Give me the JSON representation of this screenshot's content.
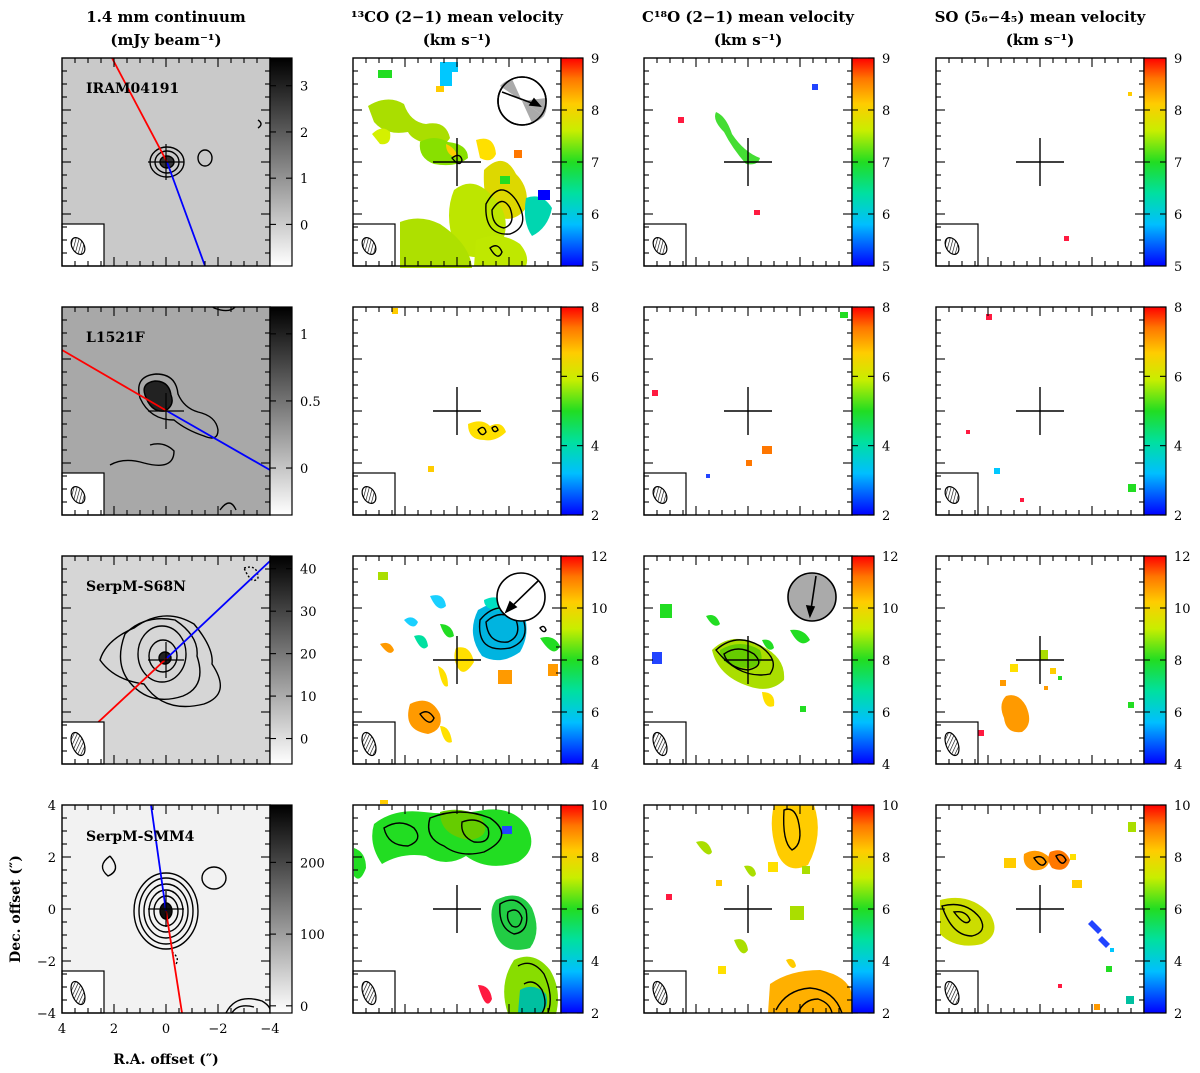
{
  "column_titles": [
    {
      "line1": "1.4 mm continuum",
      "line2": "(mJy beam⁻¹)"
    },
    {
      "line1": "¹³CO (2−1) mean velocity",
      "line2": "(km s⁻¹)"
    },
    {
      "line1": "C¹⁸O (2−1) mean velocity",
      "line2": "(km s⁻¹)"
    },
    {
      "line1": "SO (5₆−4₅) mean velocity",
      "line2": "(km s⁻¹)"
    }
  ],
  "x_axis_label": "R.A. offset (″)",
  "y_axis_label": "Dec. offset (″)",
  "chart_data": [
    {
      "type": "heatmap",
      "source": "IRAM04191",
      "panel": "1.4 mm continuum",
      "colorbar": {
        "colormap": "grayscale",
        "ticks": [
          "0",
          "1",
          "2",
          "3"
        ],
        "range": [
          -0.9,
          3.6
        ]
      },
      "outflow_pa_axes": true
    },
    {
      "type": "heatmap",
      "source": "IRAM04191",
      "panel": "13CO (2-1) mean velocity",
      "colorbar": {
        "colormap": "rainbow",
        "ticks": [
          "5",
          "6",
          "7",
          "8",
          "9"
        ],
        "range": [
          5,
          9
        ]
      },
      "rotation_indicator": "arrow"
    },
    {
      "type": "heatmap",
      "source": "IRAM04191",
      "panel": "C18O (2-1) mean velocity",
      "colorbar": {
        "colormap": "rainbow",
        "ticks": [
          "5",
          "6",
          "7",
          "8",
          "9"
        ],
        "range": [
          5,
          9
        ]
      }
    },
    {
      "type": "heatmap",
      "source": "IRAM04191",
      "panel": "SO (56-45) mean velocity",
      "colorbar": {
        "colormap": "rainbow",
        "ticks": [
          "5",
          "6",
          "7",
          "8",
          "9"
        ],
        "range": [
          5,
          9
        ]
      }
    },
    {
      "type": "heatmap",
      "source": "L1521F",
      "panel": "1.4 mm continuum",
      "colorbar": {
        "colormap": "grayscale",
        "ticks": [
          "0",
          "0.5",
          "1"
        ],
        "range": [
          -0.35,
          1.2
        ]
      },
      "outflow_pa_axes": true
    },
    {
      "type": "heatmap",
      "source": "L1521F",
      "panel": "13CO (2-1) mean velocity",
      "colorbar": {
        "colormap": "rainbow",
        "ticks": [
          "2",
          "4",
          "6",
          "8"
        ],
        "range": [
          2,
          8
        ]
      }
    },
    {
      "type": "heatmap",
      "source": "L1521F",
      "panel": "C18O (2-1) mean velocity",
      "colorbar": {
        "colormap": "rainbow",
        "ticks": [
          "2",
          "4",
          "6",
          "8"
        ],
        "range": [
          2,
          8
        ]
      }
    },
    {
      "type": "heatmap",
      "source": "L1521F",
      "panel": "SO (56-45) mean velocity",
      "colorbar": {
        "colormap": "rainbow",
        "ticks": [
          "2",
          "4",
          "6",
          "8"
        ],
        "range": [
          2,
          8
        ]
      }
    },
    {
      "type": "heatmap",
      "source": "SerpM-S68N",
      "panel": "1.4 mm continuum",
      "colorbar": {
        "colormap": "grayscale",
        "ticks": [
          "0",
          "10",
          "20",
          "30",
          "40"
        ],
        "range": [
          -6,
          43
        ]
      },
      "outflow_pa_axes": true
    },
    {
      "type": "heatmap",
      "source": "SerpM-S68N",
      "panel": "13CO (2-1) mean velocity",
      "colorbar": {
        "colormap": "rainbow",
        "ticks": [
          "4",
          "6",
          "8",
          "10",
          "12"
        ],
        "range": [
          4,
          12
        ]
      },
      "rotation_indicator": "arrow"
    },
    {
      "type": "heatmap",
      "source": "SerpM-S68N",
      "panel": "C18O (2-1) mean velocity",
      "colorbar": {
        "colormap": "rainbow",
        "ticks": [
          "4",
          "6",
          "8",
          "10",
          "12"
        ],
        "range": [
          4,
          12
        ]
      },
      "rotation_indicator": "arrow"
    },
    {
      "type": "heatmap",
      "source": "SerpM-S68N",
      "panel": "SO (56-45) mean velocity",
      "colorbar": {
        "colormap": "rainbow",
        "ticks": [
          "4",
          "6",
          "8",
          "10",
          "12"
        ],
        "range": [
          4,
          12
        ]
      }
    },
    {
      "type": "heatmap",
      "source": "SerpM-SMM4",
      "panel": "1.4 mm continuum",
      "colorbar": {
        "colormap": "grayscale",
        "ticks": [
          "0",
          "100",
          "200"
        ],
        "range": [
          -10,
          280
        ]
      },
      "outflow_pa_axes": true,
      "x_ticks": [
        "4",
        "2",
        "0",
        "−2",
        "−4"
      ],
      "y_ticks": [
        "4",
        "2",
        "0",
        "−2",
        "−4"
      ]
    },
    {
      "type": "heatmap",
      "source": "SerpM-SMM4",
      "panel": "13CO (2-1) mean velocity",
      "colorbar": {
        "colormap": "rainbow",
        "ticks": [
          "2",
          "4",
          "6",
          "8",
          "10"
        ],
        "range": [
          2,
          10
        ]
      }
    },
    {
      "type": "heatmap",
      "source": "SerpM-SMM4",
      "panel": "C18O (2-1) mean velocity",
      "colorbar": {
        "colormap": "rainbow",
        "ticks": [
          "2",
          "4",
          "6",
          "8",
          "10"
        ],
        "range": [
          2,
          10
        ]
      }
    },
    {
      "type": "heatmap",
      "source": "SerpM-SMM4",
      "panel": "SO (56-45) mean velocity",
      "colorbar": {
        "colormap": "rainbow",
        "ticks": [
          "2",
          "4",
          "6",
          "8",
          "10"
        ],
        "range": [
          2,
          10
        ]
      }
    }
  ]
}
